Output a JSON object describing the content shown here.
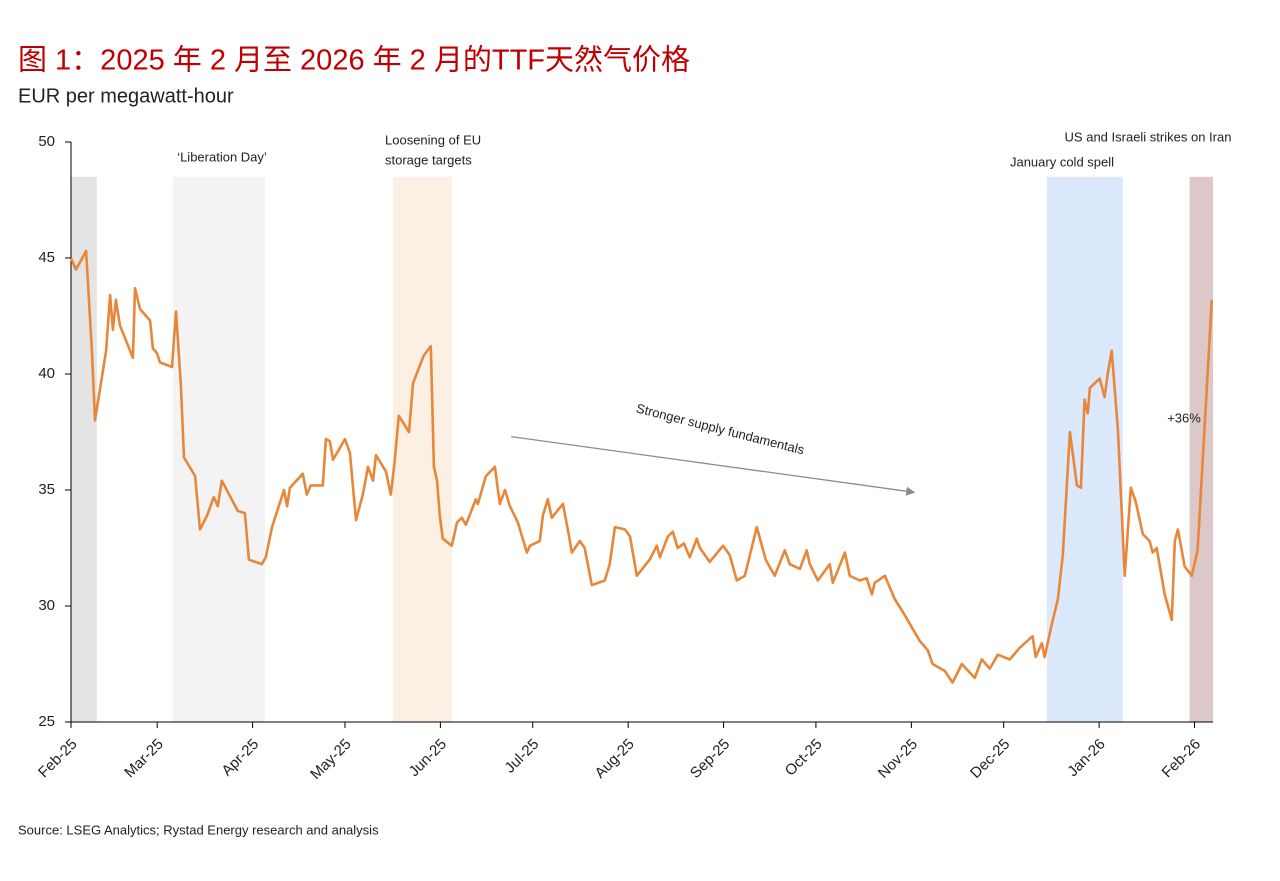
{
  "chart_data": {
    "type": "line",
    "title": "图 1：2025 年 2 月至 2026 年 2 月的TTF天然气价格",
    "subtitle": "EUR per megawatt-hour",
    "source": "Source: LSEG Analytics; Rystad Energy research and analysis",
    "xlim": [
      0,
      371
    ],
    "xticks": [
      {
        "value": 0,
        "label": "Feb-25"
      },
      {
        "value": 28,
        "label": "Mar-25"
      },
      {
        "value": 59,
        "label": "Apr-25"
      },
      {
        "value": 89,
        "label": "May-25"
      },
      {
        "value": 120,
        "label": "Jun-25"
      },
      {
        "value": 150,
        "label": "Jul-25"
      },
      {
        "value": 181,
        "label": "Aug-25"
      },
      {
        "value": 212,
        "label": "Sep-25"
      },
      {
        "value": 242,
        "label": "Oct-25"
      },
      {
        "value": 273,
        "label": "Nov-25"
      },
      {
        "value": 303,
        "label": "Dec-25"
      },
      {
        "value": 334,
        "label": "Jan-26"
      },
      {
        "value": 365,
        "label": "Feb-26"
      }
    ],
    "ylim": [
      25,
      50
    ],
    "yticks": [
      25,
      30,
      35,
      40,
      45,
      50
    ],
    "band_top": 48.5,
    "shaded_regions": [
      {
        "x": [
          0,
          8.4
        ],
        "color": "#e4e4e4"
      },
      {
        "x": [
          33.1,
          63
        ],
        "color": "#f3f3f3"
      },
      {
        "x": [
          104.6,
          123.7
        ],
        "color": "#fcefe3"
      },
      {
        "x": [
          317,
          341.7
        ],
        "color": "#dce8fb"
      },
      {
        "x": [
          363.4,
          371
        ],
        "color": "#dcc8c8"
      }
    ],
    "annotations": [
      "‘Liberation Day’",
      "Loosening of EU",
      "storage targets",
      "January cold spell",
      "US and Israeli strikes on Iran",
      "Stronger supply fundamentals",
      "+36%"
    ],
    "arrow": {
      "x": [
        143,
        274
      ],
      "y": [
        37.3,
        34.9
      ],
      "color": "#8c8c8c"
    },
    "series": [
      {
        "name": "TTF",
        "color": "#e8873a",
        "x": [
          0,
          1.6,
          4.9,
          6.8,
          7.8,
          11.4,
          12.7,
          13.6,
          14.6,
          15.9,
          20.1,
          20.8,
          22.4,
          25.7,
          26.6,
          27.9,
          28.9,
          32.8,
          34.1,
          35.7,
          36.7,
          40.3,
          41.9,
          44.2,
          46.4,
          47.7,
          49,
          54.2,
          56.5,
          57.8,
          62,
          63.3,
          65.3,
          69.2,
          70.2,
          71.1,
          75.3,
          76.6,
          77.9,
          81.8,
          82.8,
          84.1,
          85.1,
          89,
          90.6,
          92.6,
          94.8,
          96.5,
          98.1,
          99.1,
          102.3,
          103.9,
          105.2,
          106.5,
          109.8,
          111.1,
          114.6,
          116.9,
          117.9,
          118.9,
          119.8,
          120.8,
          123.7,
          125.4,
          127,
          128.3,
          131.5,
          132.2,
          134.8,
          137.7,
          139.3,
          141,
          142.6,
          145.2,
          148.1,
          149.1,
          152.3,
          153.3,
          154.9,
          156.2,
          159.8,
          161.7,
          162.7,
          165.3,
          166.9,
          169.2,
          173.4,
          175,
          176.7,
          179.9,
          181.6,
          183.8,
          188,
          190.3,
          191.3,
          193.9,
          195.5,
          197.1,
          199.1,
          201,
          203.3,
          204.3,
          207.5,
          211.8,
          214,
          216.3,
          218.9,
          222.8,
          225.7,
          228.6,
          231.9,
          233.5,
          236.8,
          239,
          240,
          242.6,
          246.5,
          247.5,
          251.4,
          253,
          256.3,
          258.5,
          260.2,
          261.1,
          264.4,
          267.6,
          270.9,
          273.5,
          275.7,
          278.3,
          279.9,
          283.9,
          286.4,
          289.4,
          293.6,
          295.9,
          298.5,
          301.1,
          305,
          308.2,
          312.4,
          313.4,
          315.4,
          316.3,
          318.6,
          320.6,
          322.2,
          324.5,
          326.8,
          328.1,
          329.3,
          330.3,
          331,
          334.2,
          335.8,
          336.8,
          338.1,
          340.1,
          342.3,
          344.3,
          345.9,
          348.2,
          350.4,
          351.4,
          352.7,
          355.3,
          357.6,
          358.6,
          359.6,
          361.8,
          364.1,
          366,
          370.6
        ],
        "values": [
          45,
          44.5,
          45.3,
          41,
          38,
          41,
          43.4,
          41.9,
          43.2,
          42.1,
          40.7,
          43.7,
          42.8,
          42.3,
          41.1,
          40.9,
          40.5,
          40.3,
          42.7,
          39.5,
          36.4,
          35.6,
          33.3,
          33.9,
          34.7,
          34.3,
          35.4,
          34.1,
          34,
          32,
          31.8,
          32.1,
          33.4,
          35,
          34.3,
          35.1,
          35.7,
          34.8,
          35.2,
          35.2,
          37.2,
          37.1,
          36.3,
          37.2,
          36.6,
          33.7,
          34.8,
          36,
          35.4,
          36.5,
          35.8,
          34.8,
          36.3,
          38.2,
          37.5,
          39.6,
          40.8,
          41.2,
          36,
          35.4,
          33.9,
          32.9,
          32.6,
          33.6,
          33.8,
          33.5,
          34.6,
          34.4,
          35.6,
          36,
          34.4,
          35,
          34.3,
          33.6,
          32.3,
          32.6,
          32.8,
          33.9,
          34.6,
          33.8,
          34.4,
          33.1,
          32.3,
          32.8,
          32.5,
          30.9,
          31.1,
          31.8,
          33.4,
          33.3,
          33,
          31.3,
          32,
          32.6,
          32.1,
          33,
          33.2,
          32.5,
          32.7,
          32.1,
          32.9,
          32.5,
          31.9,
          32.6,
          32.2,
          31.1,
          31.3,
          33.4,
          32,
          31.3,
          32.4,
          31.8,
          31.6,
          32.4,
          31.8,
          31.1,
          31.8,
          31,
          32.3,
          31.3,
          31.1,
          31.2,
          30.5,
          31,
          31.3,
          30.3,
          29.6,
          29,
          28.5,
          28.1,
          27.5,
          27.2,
          26.7,
          27.5,
          26.9,
          27.7,
          27.3,
          27.9,
          27.7,
          28.2,
          28.7,
          27.8,
          28.4,
          27.8,
          29.2,
          30.3,
          32.2,
          37.5,
          35.2,
          35.1,
          38.9,
          38.3,
          39.4,
          39.8,
          39,
          40,
          41,
          37.6,
          31.3,
          35.1,
          34.5,
          33.1,
          32.8,
          32.3,
          32.5,
          30.5,
          29.4,
          32.8,
          33.3,
          31.7,
          31.3,
          32.4,
          43.2
        ]
      }
    ]
  }
}
